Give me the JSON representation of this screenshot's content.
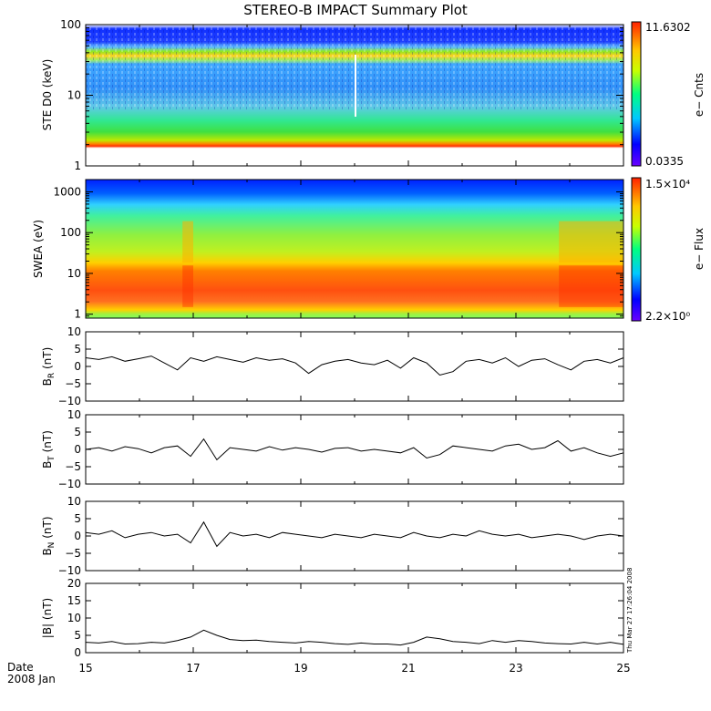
{
  "chart_data": [
    {
      "type": "heatmap",
      "title": "STEREO-B IMPACT Summary Plot",
      "ylabel": "STE D0 (keV)",
      "yscale": "log",
      "ylim": [
        1,
        100
      ],
      "yticks": [
        "1",
        "10",
        "100"
      ],
      "colorbar": {
        "label": "e− Cnts",
        "max": "11.6302",
        "min": "0.0335"
      },
      "description_bands_keV": [
        {
          "range": [
            2.0,
            2.3
          ],
          "level": "high"
        },
        {
          "range": [
            2.3,
            7.0
          ],
          "level": "medium"
        },
        {
          "range": [
            7.0,
            30
          ],
          "level": "low"
        },
        {
          "range": [
            33,
            37
          ],
          "level": "medium"
        },
        {
          "range": [
            45,
            100
          ],
          "level": "very low"
        }
      ]
    },
    {
      "type": "heatmap",
      "ylabel": "SWEA (eV)",
      "yscale": "log",
      "ylim": [
        0.8,
        2000
      ],
      "yticks": [
        "1",
        "10",
        "100",
        "1000"
      ],
      "colorbar": {
        "label": "e− Flux",
        "max": "1.5×10⁴",
        "min": "2.2×10⁰"
      },
      "enhanced_intervals_day": [
        [
          16.8,
          17.0
        ],
        [
          23.8,
          25.0
        ]
      ]
    },
    {
      "type": "line",
      "ylabel": "B_R (nT)",
      "ylim": [
        -10,
        10
      ],
      "yticks": [
        "10",
        "5",
        "0",
        "−5",
        "−10"
      ],
      "series": [
        {
          "values": [
            2.5,
            2.0,
            2.8,
            1.5,
            2.2,
            3.0,
            1.0,
            -1.0,
            2.5,
            1.5,
            2.8,
            2.0,
            1.2,
            2.5,
            1.8,
            2.2,
            1.0,
            -2.0,
            0.5,
            1.5,
            2.0,
            1.0,
            0.5,
            1.8,
            -0.5,
            2.5,
            1.0,
            -2.5,
            -1.5,
            1.5,
            2.0,
            1.0,
            2.5,
            0.0,
            1.8,
            2.2,
            0.5,
            -1.0,
            1.5,
            2.0,
            1.0,
            2.5
          ]
        }
      ]
    },
    {
      "type": "line",
      "ylabel": "B_T (nT)",
      "ylim": [
        -10,
        10
      ],
      "yticks": [
        "10",
        "5",
        "0",
        "−5",
        "−10"
      ],
      "series": [
        {
          "values": [
            0.0,
            0.5,
            -0.5,
            0.8,
            0.2,
            -1.0,
            0.5,
            1.0,
            -2.0,
            3.0,
            -3.0,
            0.5,
            0.0,
            -0.5,
            0.8,
            -0.2,
            0.5,
            0.0,
            -0.8,
            0.3,
            0.5,
            -0.5,
            0.0,
            -0.5,
            -1.0,
            0.5,
            -2.5,
            -1.5,
            1.0,
            0.5,
            0.0,
            -0.5,
            1.0,
            1.5,
            0.0,
            0.5,
            2.5,
            -0.5,
            0.5,
            -1.0,
            -2.0,
            -1.0
          ]
        }
      ]
    },
    {
      "type": "line",
      "ylabel": "B_N (nT)",
      "ylim": [
        -10,
        10
      ],
      "yticks": [
        "10",
        "5",
        "0",
        "−5",
        "−10"
      ],
      "series": [
        {
          "values": [
            1.0,
            0.5,
            1.5,
            -0.5,
            0.5,
            1.0,
            0.0,
            0.5,
            -2.0,
            4.0,
            -3.0,
            1.0,
            0.0,
            0.5,
            -0.5,
            1.0,
            0.5,
            0.0,
            -0.5,
            0.5,
            0.0,
            -0.5,
            0.5,
            0.0,
            -0.5,
            1.0,
            0.0,
            -0.5,
            0.5,
            0.0,
            1.5,
            0.5,
            0.0,
            0.5,
            -0.5,
            0.0,
            0.5,
            0.0,
            -1.0,
            0.0,
            0.5,
            0.0
          ]
        }
      ]
    },
    {
      "type": "line",
      "ylabel": "|B| (nT)",
      "ylim": [
        0,
        20
      ],
      "yticks": [
        "20",
        "15",
        "10",
        "5",
        "0"
      ],
      "series": [
        {
          "values": [
            3.0,
            2.8,
            3.2,
            2.5,
            2.6,
            3.0,
            2.8,
            3.5,
            4.5,
            6.5,
            5.0,
            3.8,
            3.5,
            3.6,
            3.2,
            3.0,
            2.8,
            3.2,
            3.0,
            2.6,
            2.4,
            2.8,
            2.5,
            2.5,
            2.2,
            3.0,
            4.5,
            4.0,
            3.2,
            3.0,
            2.6,
            3.5,
            3.0,
            3.5,
            3.2,
            2.8,
            2.6,
            2.5,
            3.0,
            2.5,
            3.0,
            2.4
          ]
        }
      ]
    }
  ],
  "x_axis": {
    "xlim": [
      15,
      25
    ],
    "tick_values": [
      15,
      17,
      19,
      21,
      23,
      25
    ],
    "tick_labels": [
      "15",
      "17",
      "19",
      "21",
      "23",
      "25"
    ],
    "label_line1": "Date",
    "label_line2": "2008 Jan"
  },
  "timestamp": "Thu Mar 27 17:26:04 2008",
  "colors": {
    "line": "#000000",
    "frame": "#000000"
  }
}
